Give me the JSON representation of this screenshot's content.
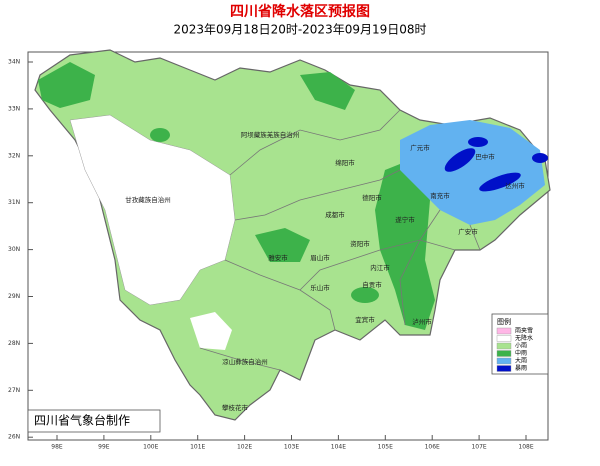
{
  "title": "四川省降水落区预报图",
  "subtitle": "2023年09月18日20时-2023年09月19日08时",
  "lat_labels": [
    "34N",
    "33N",
    "32N",
    "31N",
    "30N",
    "29N",
    "28N",
    "27N",
    "26N"
  ],
  "lon_labels": [
    "98E",
    "99E",
    "100E",
    "101E",
    "102E",
    "103E",
    "104E",
    "105E",
    "106E",
    "107E",
    "108E"
  ],
  "regions": [
    "阿坝藏族羌族自治州",
    "甘孜藏族自治州",
    "凉山彝族自治州",
    "攀枝花市",
    "绵阳市",
    "广元市",
    "巴中市",
    "达州市",
    "南充市",
    "遂宁市",
    "广安市",
    "成都市",
    "德阳市",
    "资阳市",
    "内江市",
    "自贡市",
    "宜宾市",
    "泸州市",
    "眉山市",
    "乐山市",
    "雅安市"
  ],
  "legend": {
    "title": "图例",
    "items": [
      "雨夹雪",
      "无降水",
      "小雨",
      "中雨",
      "大雨",
      "暴雨"
    ]
  },
  "footer": "四川省气象台制作"
}
